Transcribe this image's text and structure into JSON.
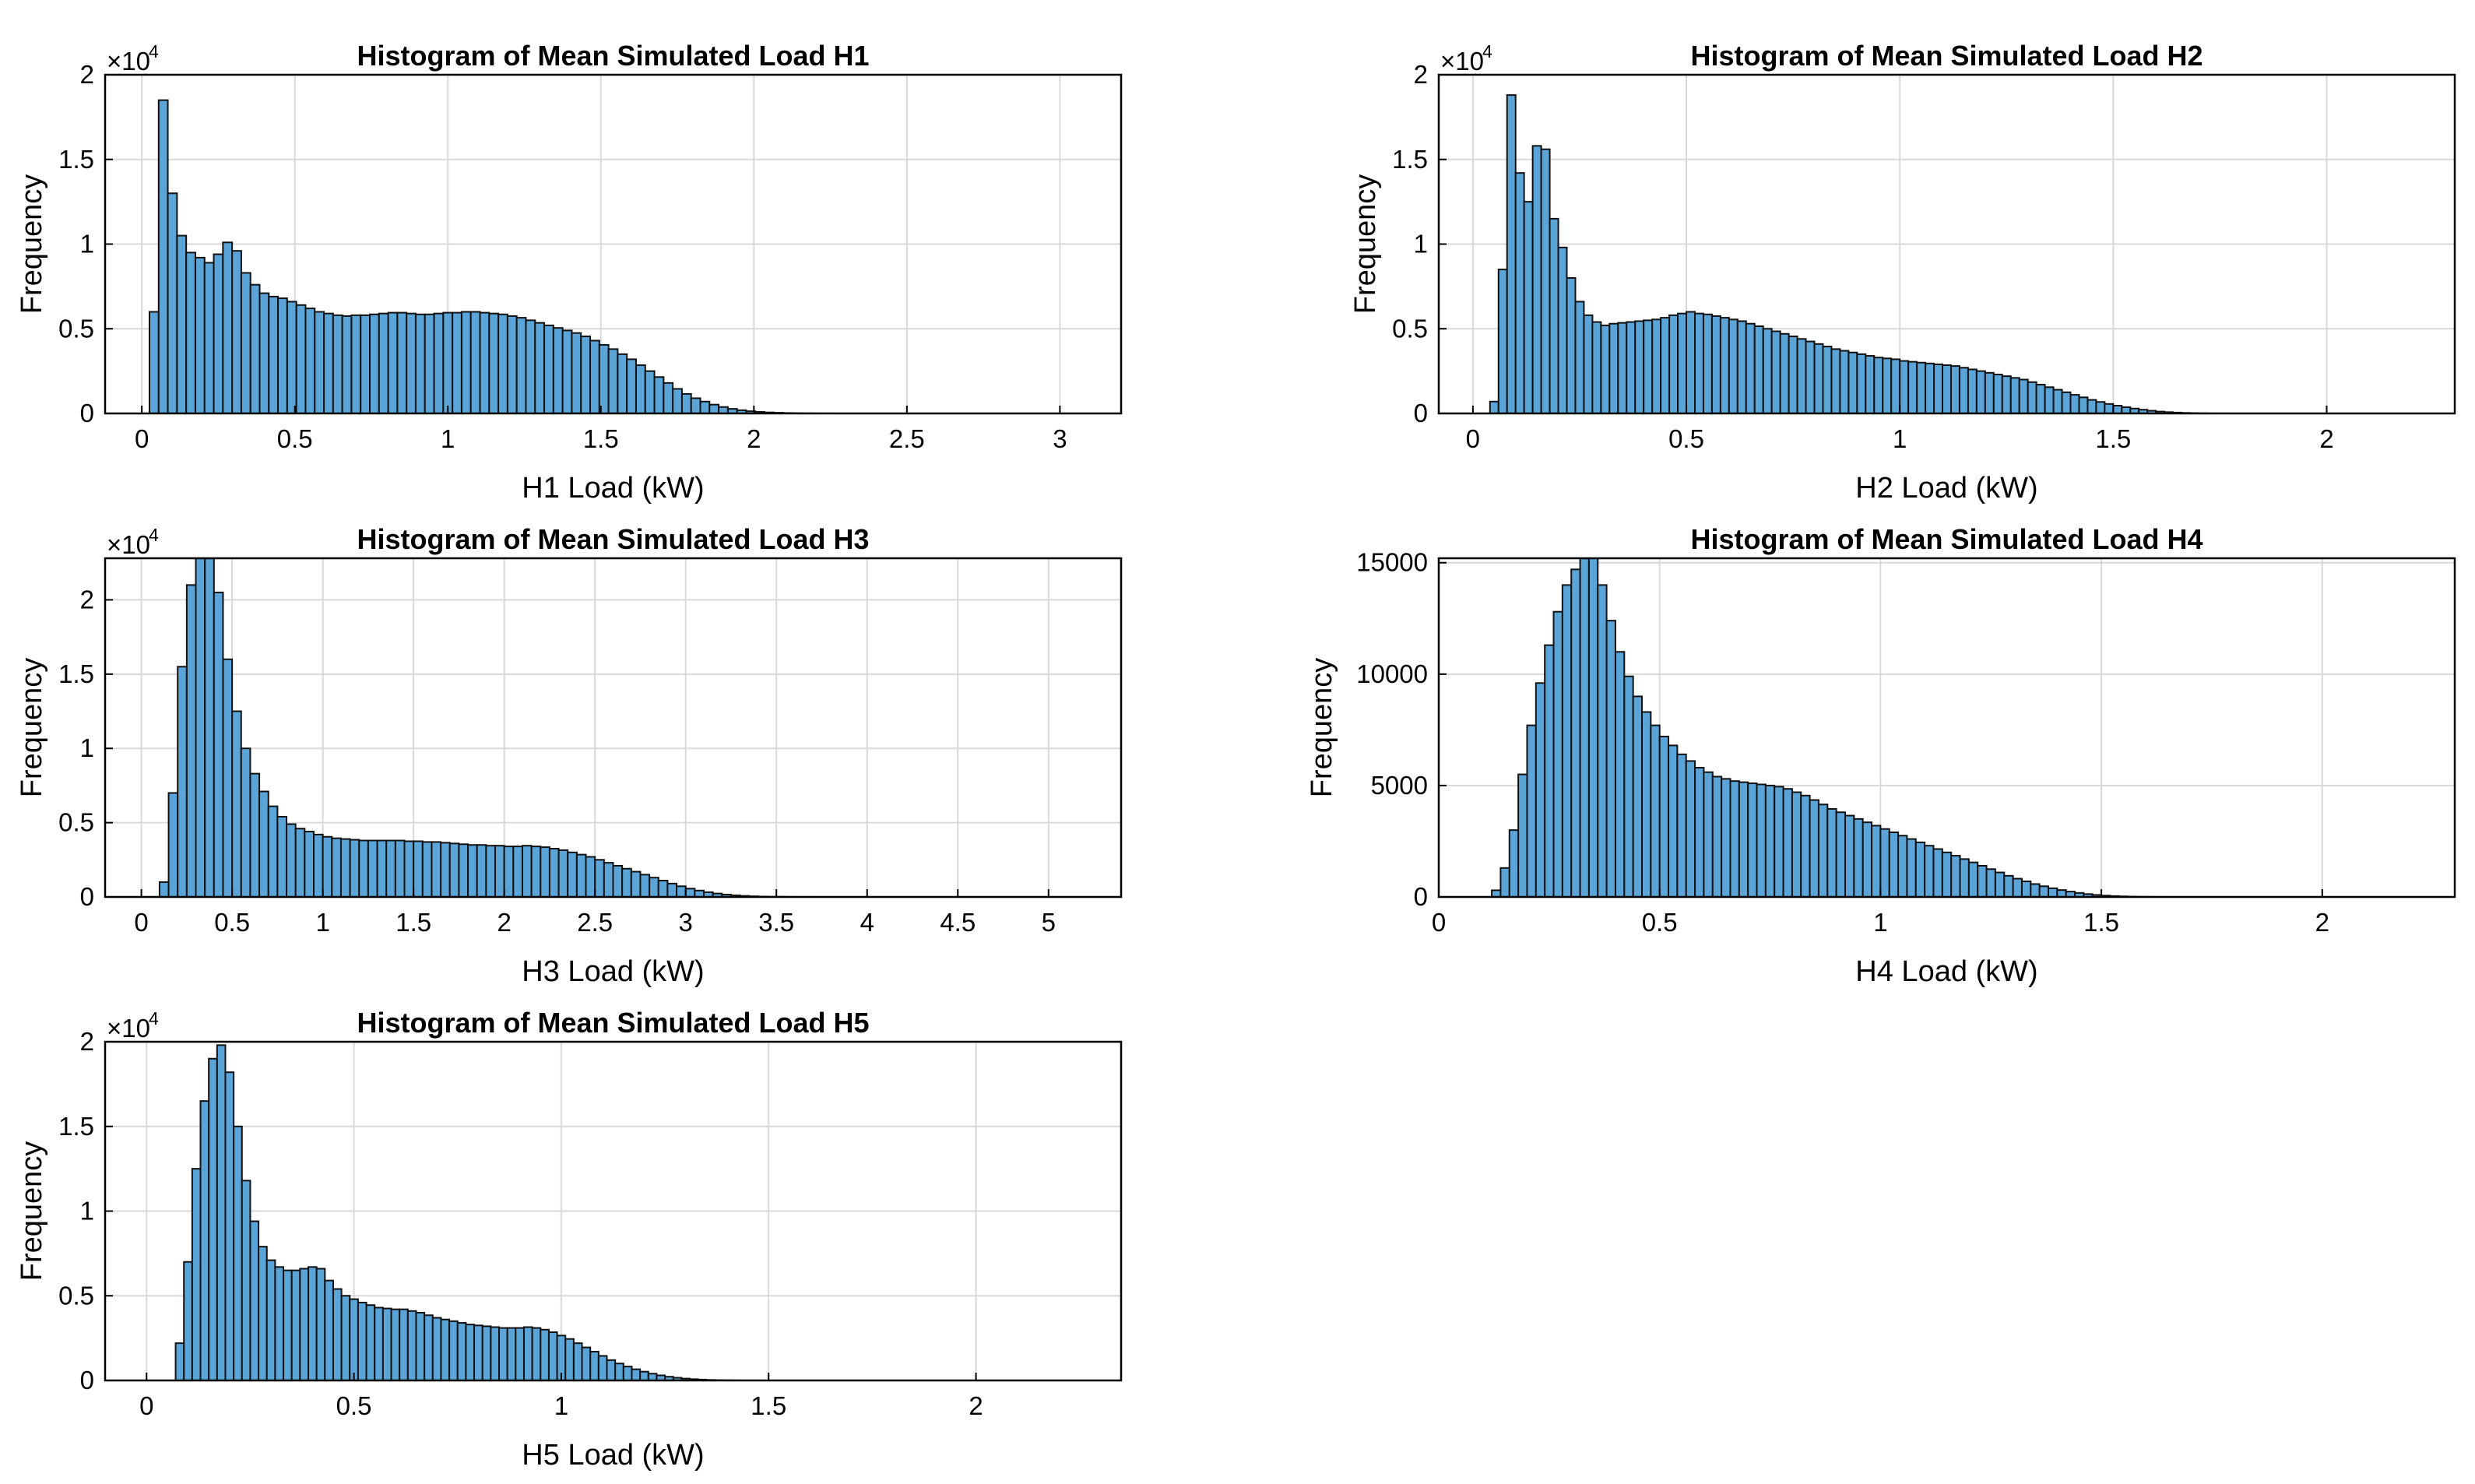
{
  "chart_data": [
    {
      "type": "bar",
      "title": "Histogram of Mean Simulated Load H1",
      "xlabel": "H1 Load (kW)",
      "ylabel": "Frequency",
      "exponent_label": "×10",
      "exponent_power": "4",
      "xlim": [
        -0.12,
        3.2
      ],
      "ylim": [
        0,
        20000
      ],
      "xticks": [
        0,
        0.5,
        1,
        1.5,
        2,
        2.5,
        3
      ],
      "xtick_labels": [
        "0",
        "0.5",
        "1",
        "1.5",
        "2",
        "2.5",
        "3"
      ],
      "yticks": [
        0,
        5000,
        10000,
        15000,
        20000
      ],
      "ytick_labels": [
        "0",
        "0.5",
        "1",
        "1.5",
        "2"
      ],
      "bin_start": 0.025,
      "bin_width": 0.03,
      "values": [
        6000,
        18500,
        13000,
        10500,
        9500,
        9200,
        8900,
        9400,
        10100,
        9600,
        8300,
        7600,
        7100,
        6900,
        6800,
        6600,
        6400,
        6200,
        6000,
        5900,
        5800,
        5750,
        5800,
        5800,
        5850,
        5900,
        5950,
        5950,
        5900,
        5850,
        5850,
        5900,
        5950,
        5950,
        6000,
        6000,
        5950,
        5900,
        5850,
        5750,
        5650,
        5500,
        5350,
        5200,
        5050,
        4900,
        4750,
        4550,
        4300,
        4050,
        3800,
        3500,
        3200,
        2850,
        2500,
        2150,
        1800,
        1450,
        1150,
        900,
        700,
        520,
        380,
        270,
        190,
        130,
        90,
        60,
        40,
        25,
        15,
        10,
        5,
        3,
        2
      ]
    },
    {
      "type": "bar",
      "title": "Histogram of Mean Simulated Load H2",
      "xlabel": "H2 Load (kW)",
      "ylabel": "Frequency",
      "exponent_label": "×10",
      "exponent_power": "4",
      "xlim": [
        -0.08,
        2.3
      ],
      "ylim": [
        0,
        20000
      ],
      "xticks": [
        0,
        0.5,
        1,
        1.5,
        2
      ],
      "xtick_labels": [
        "0",
        "0.5",
        "1",
        "1.5",
        "2"
      ],
      "yticks": [
        0,
        5000,
        10000,
        15000,
        20000
      ],
      "ytick_labels": [
        "0",
        "0.5",
        "1",
        "1.5",
        "2"
      ],
      "bin_start": 0.04,
      "bin_width": 0.02,
      "values": [
        700,
        8500,
        18800,
        14200,
        12500,
        15800,
        15600,
        11500,
        9800,
        8000,
        6600,
        5800,
        5400,
        5200,
        5300,
        5350,
        5400,
        5450,
        5500,
        5550,
        5650,
        5800,
        5900,
        6000,
        5900,
        5850,
        5750,
        5650,
        5550,
        5450,
        5300,
        5150,
        5000,
        4850,
        4700,
        4550,
        4400,
        4250,
        4100,
        3950,
        3800,
        3700,
        3600,
        3500,
        3400,
        3300,
        3250,
        3200,
        3100,
        3050,
        3000,
        2950,
        2900,
        2850,
        2800,
        2700,
        2600,
        2500,
        2400,
        2300,
        2200,
        2100,
        2000,
        1850,
        1700,
        1550,
        1400,
        1250,
        1100,
        950,
        800,
        680,
        560,
        460,
        370,
        290,
        220,
        160,
        110,
        75,
        50,
        30,
        18,
        10,
        5,
        3,
        2
      ]
    },
    {
      "type": "bar",
      "title": "Histogram of Mean Simulated Load H3",
      "xlabel": "H3 Load (kW)",
      "ylabel": "Frequency",
      "exponent_label": "×10",
      "exponent_power": "4",
      "xlim": [
        -0.2,
        5.4
      ],
      "ylim": [
        0,
        22800
      ],
      "xticks": [
        0,
        0.5,
        1,
        1.5,
        2,
        2.5,
        3,
        3.5,
        4,
        4.5,
        5
      ],
      "xtick_labels": [
        "0",
        "0.5",
        "1",
        "1.5",
        "2",
        "2.5",
        "3",
        "3.5",
        "4",
        "4.5",
        "5"
      ],
      "yticks": [
        0,
        5000,
        10000,
        15000,
        20000
      ],
      "ytick_labels": [
        "0",
        "0.5",
        "1",
        "1.5",
        "2"
      ],
      "bin_start": 0.1,
      "bin_width": 0.05,
      "values": [
        1000,
        7000,
        15500,
        21000,
        23500,
        23000,
        20500,
        16000,
        12500,
        10000,
        8300,
        7100,
        6100,
        5400,
        4900,
        4600,
        4400,
        4200,
        4050,
        3950,
        3900,
        3850,
        3800,
        3800,
        3800,
        3800,
        3800,
        3750,
        3750,
        3700,
        3700,
        3650,
        3600,
        3550,
        3500,
        3500,
        3450,
        3450,
        3400,
        3400,
        3450,
        3400,
        3350,
        3250,
        3150,
        3000,
        2850,
        2700,
        2500,
        2300,
        2100,
        1900,
        1700,
        1500,
        1300,
        1100,
        900,
        720,
        560,
        430,
        320,
        230,
        160,
        110,
        70,
        45,
        28,
        16,
        9,
        5,
        3,
        2
      ]
    },
    {
      "type": "bar",
      "title": "Histogram of Mean Simulated Load H4",
      "xlabel": "H4 Load (kW)",
      "ylabel": "Frequency",
      "exponent_label": "",
      "exponent_power": "",
      "xlim": [
        0,
        2.3
      ],
      "ylim": [
        0,
        15200
      ],
      "xticks": [
        0,
        0.5,
        1,
        1.5,
        2
      ],
      "xtick_labels": [
        "0",
        "0.5",
        "1",
        "1.5",
        "2"
      ],
      "yticks": [
        0,
        5000,
        10000,
        15000
      ],
      "ytick_labels": [
        "0",
        "5000",
        "10000",
        "15000"
      ],
      "bin_start": 0.12,
      "bin_width": 0.02,
      "values": [
        300,
        1300,
        3000,
        5500,
        7700,
        9600,
        11300,
        12800,
        14000,
        14700,
        15400,
        15300,
        14000,
        12400,
        11000,
        9900,
        9000,
        8300,
        7700,
        7200,
        6800,
        6400,
        6100,
        5800,
        5600,
        5400,
        5300,
        5200,
        5150,
        5100,
        5050,
        5000,
        4950,
        4850,
        4700,
        4550,
        4350,
        4150,
        3950,
        3800,
        3650,
        3500,
        3350,
        3200,
        3050,
        2900,
        2750,
        2600,
        2450,
        2300,
        2150,
        2000,
        1850,
        1700,
        1550,
        1400,
        1250,
        1100,
        950,
        820,
        700,
        580,
        480,
        390,
        310,
        240,
        180,
        130,
        90,
        60,
        40,
        25,
        15,
        8,
        4,
        2
      ]
    },
    {
      "type": "bar",
      "title": "Histogram of Mean Simulated Load H5",
      "xlabel": "H5 Load (kW)",
      "ylabel": "Frequency",
      "exponent_label": "×10",
      "exponent_power": "4",
      "xlim": [
        -0.1,
        2.35
      ],
      "ylim": [
        0,
        20000
      ],
      "xticks": [
        0,
        0.5,
        1,
        1.5,
        2
      ],
      "xtick_labels": [
        "0",
        "0.5",
        "1",
        "1.5",
        "2"
      ],
      "yticks": [
        0,
        5000,
        10000,
        15000,
        20000
      ],
      "ytick_labels": [
        "0",
        "0.5",
        "1",
        "1.5",
        "2"
      ],
      "bin_start": 0.07,
      "bin_width": 0.02,
      "values": [
        2200,
        7000,
        12500,
        16500,
        19000,
        19800,
        18200,
        15000,
        11800,
        9400,
        7900,
        7100,
        6700,
        6500,
        6500,
        6600,
        6700,
        6600,
        5900,
        5400,
        5000,
        4800,
        4600,
        4450,
        4300,
        4250,
        4200,
        4200,
        4100,
        4000,
        3850,
        3700,
        3600,
        3500,
        3400,
        3300,
        3250,
        3200,
        3150,
        3100,
        3100,
        3100,
        3150,
        3100,
        3000,
        2850,
        2650,
        2450,
        2200,
        1950,
        1700,
        1450,
        1200,
        1000,
        820,
        660,
        520,
        400,
        300,
        220,
        160,
        110,
        75,
        50,
        30,
        18,
        10,
        6,
        3,
        2
      ]
    }
  ]
}
